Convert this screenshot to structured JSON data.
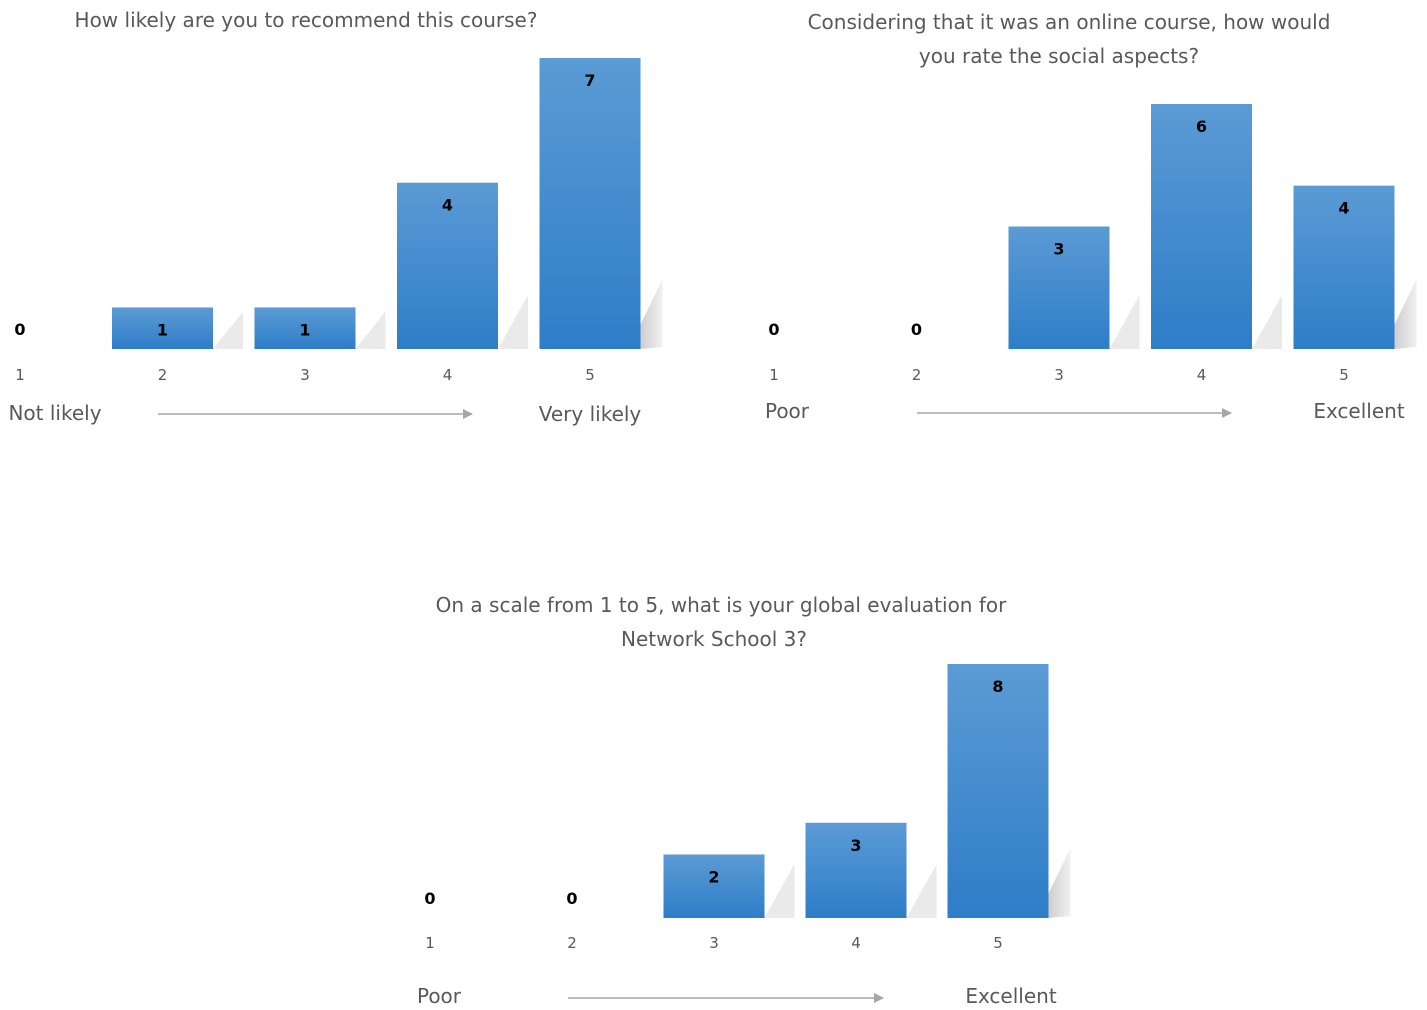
{
  "colors": {
    "bar_top": "#5b9bd5",
    "bar_bottom": "#2e7dc8",
    "arrow": "#a6a6a6",
    "text": "#595959",
    "shadow": "#c8c8c8"
  },
  "chart_data": [
    {
      "type": "bar",
      "title_lines": [
        "How likely are you to recommend this course?"
      ],
      "categories": [
        "1",
        "2",
        "3",
        "4",
        "5"
      ],
      "values": [
        0,
        1,
        1,
        4,
        7
      ],
      "ylim": [
        0,
        7
      ],
      "grid": false,
      "scale_low": "Not likely",
      "scale_high": "Very likely"
    },
    {
      "type": "bar",
      "title_lines": [
        "Considering that it was an online course, how would",
        "you rate the social aspects?"
      ],
      "categories": [
        "1",
        "2",
        "3",
        "4",
        "5"
      ],
      "values": [
        0,
        0,
        3,
        6,
        4
      ],
      "ylim": [
        0,
        6
      ],
      "grid": false,
      "scale_low": "Poor",
      "scale_high": "Excellent"
    },
    {
      "type": "bar",
      "title_lines": [
        "On a scale from 1 to 5, what is your global evaluation for",
        "Network School 3?"
      ],
      "categories": [
        "1",
        "2",
        "3",
        "4",
        "5"
      ],
      "values": [
        0,
        0,
        2,
        3,
        8
      ],
      "ylim": [
        0,
        8
      ],
      "grid": false,
      "scale_low": "Poor",
      "scale_high": "Excellent"
    }
  ]
}
